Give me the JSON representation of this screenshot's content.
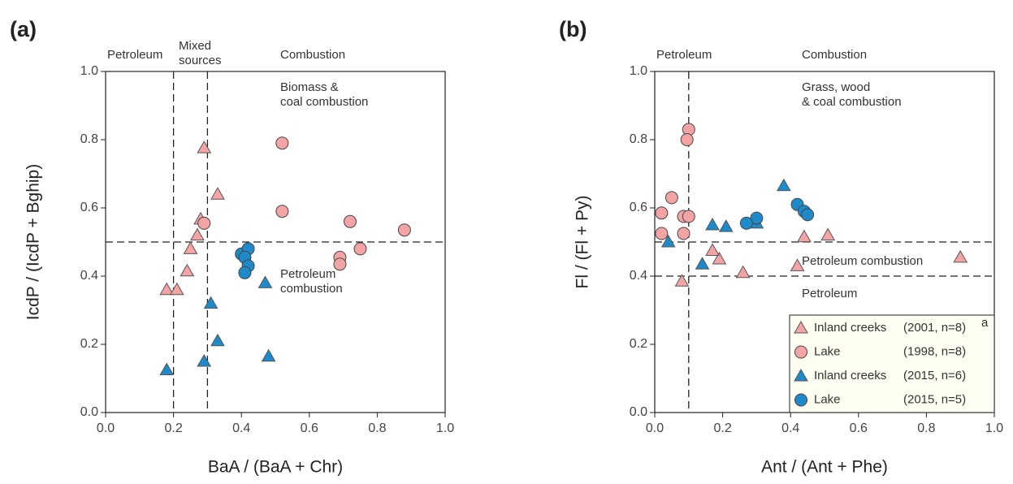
{
  "chart_data": [
    {
      "type": "scatter",
      "panel_label": "(a)",
      "x_label": "BaA / (BaA + Chr)",
      "y_label": "IcdP / (IcdP + Bghip)",
      "xlim": [
        0,
        1
      ],
      "ylim": [
        0,
        1
      ],
      "xticks": [
        {
          "value": 0,
          "label": "0.0"
        },
        0.2,
        0.4,
        0.6,
        0.8,
        {
          "value": 1,
          "label": "1.0"
        }
      ],
      "yticks": [
        {
          "value": 0,
          "label": "0.0"
        },
        0.2,
        0.4,
        0.6,
        0.8,
        {
          "value": 1,
          "label": "1.0"
        }
      ],
      "vlines": [
        0.2,
        0.3
      ],
      "hlines": [
        0.5
      ],
      "annotations": [
        [
          "Petroleum"
        ],
        [
          "Mixed",
          "sources"
        ],
        [
          "Combustion"
        ],
        [
          "Biomass &",
          "coal combustion"
        ],
        [
          "Petroleum",
          "combustion"
        ]
      ],
      "series": [
        {
          "color": "#f4a4a4",
          "marker": "triangle",
          "x": [
            0.29,
            0.33,
            0.28,
            0.27,
            0.25,
            0.24,
            0.18,
            0.21
          ],
          "values": [
            0.776,
            0.64,
            0.567,
            0.52,
            0.48,
            0.415,
            0.36,
            0.36
          ]
        },
        {
          "color": "#f4a4a4",
          "marker": "circle",
          "x": [
            0.52,
            0.52,
            0.29,
            0.72,
            0.88,
            0.75,
            0.69,
            0.69
          ],
          "values": [
            0.79,
            0.59,
            0.555,
            0.56,
            0.535,
            0.48,
            0.455,
            0.435
          ]
        },
        {
          "color": "#1f8ac9",
          "marker": "triangle",
          "x": [
            0.47,
            0.31,
            0.33,
            0.48,
            0.29,
            0.18
          ],
          "values": [
            0.38,
            0.32,
            0.21,
            0.165,
            0.15,
            0.125
          ]
        },
        {
          "color": "#1f8ac9",
          "marker": "circle",
          "x": [
            0.4,
            0.42,
            0.41,
            0.42,
            0.41
          ],
          "values": [
            0.465,
            0.48,
            0.455,
            0.43,
            0.41
          ]
        }
      ]
    },
    {
      "type": "scatter",
      "panel_label": "(b)",
      "x_label": "Ant / (Ant + Phe)",
      "y_label": "Fl / (Fl + Py)",
      "xlim": [
        0,
        1
      ],
      "ylim": [
        0,
        1
      ],
      "xticks": [
        {
          "value": 0,
          "label": "0.0"
        },
        0.2,
        0.4,
        0.6,
        0.8,
        {
          "value": 1,
          "label": "1.0"
        }
      ],
      "yticks": [
        {
          "value": 0,
          "label": "0.0"
        },
        0.2,
        0.4,
        0.6,
        0.8,
        {
          "value": 1,
          "label": "1.0"
        }
      ],
      "vlines": [
        0.1
      ],
      "hlines": [
        0.5,
        0.4
      ],
      "annotations": [
        [
          "Petroleum"
        ],
        [
          "Combustion"
        ],
        [
          "Grass, wood",
          "& coal combustion"
        ],
        [
          "Petroleum combustion"
        ],
        [
          "Petroleum"
        ]
      ],
      "legend": "lower right",
      "series": [
        {
          "name": "Inland creeks",
          "detail": "(2001, n=8)",
          "footnote": "a",
          "color": "#f4a4a4",
          "marker": "triangle",
          "x": [
            0.9,
            0.51,
            0.44,
            0.42,
            0.26,
            0.19,
            0.17,
            0.08
          ],
          "values": [
            0.455,
            0.52,
            0.515,
            0.43,
            0.41,
            0.45,
            0.475,
            0.385
          ]
        },
        {
          "name": "Lake",
          "detail": "(1998, n=8)",
          "color": "#f4a4a4",
          "marker": "circle",
          "x": [
            0.1,
            0.095,
            0.05,
            0.02,
            0.085,
            0.1,
            0.02,
            0.085
          ],
          "values": [
            0.83,
            0.8,
            0.63,
            0.585,
            0.575,
            0.575,
            0.525,
            0.525
          ]
        },
        {
          "name": "Inland creeks",
          "detail": "(2015, n=6)",
          "color": "#1f8ac9",
          "marker": "triangle",
          "x": [
            0.38,
            0.17,
            0.21,
            0.3,
            0.04,
            0.14
          ],
          "values": [
            0.665,
            0.55,
            0.545,
            0.555,
            0.5,
            0.435
          ]
        },
        {
          "name": "Lake",
          "detail": "(2015, n=5)",
          "color": "#1f8ac9",
          "marker": "circle",
          "x": [
            0.42,
            0.44,
            0.45,
            0.3,
            0.27
          ],
          "values": [
            0.61,
            0.59,
            0.58,
            0.57,
            0.555
          ]
        }
      ]
    }
  ]
}
